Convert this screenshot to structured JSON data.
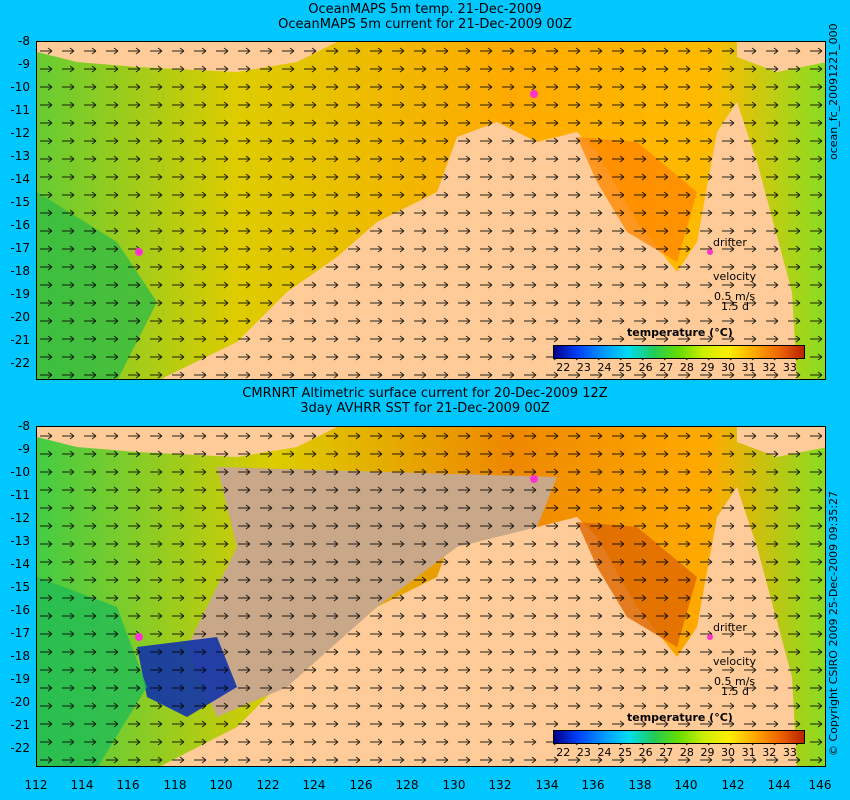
{
  "top_panel": {
    "title_line1": "OceanMAPS 5m temp. 21-Dec-2009",
    "title_line2": "OceanMAPS 5m current for 21-Dec-2009 00Z",
    "side_label": "ocean_fc_20091221_000"
  },
  "bottom_panel": {
    "title_line1": "CMRNRT Altimetric surface current for 20-Dec-2009 12Z",
    "title_line2": "3day AVHRR SST for 21-Dec-2009 00Z",
    "side_label": "© Copyright CSIRO 2009  25-Dec-2009 09:35:27"
  },
  "legend": {
    "drifter": "drifter",
    "velocity": "velocity",
    "speed": "0.5 m/s",
    "duration": "1.5 d"
  },
  "colorbar": {
    "label": "temperature (°C)",
    "ticks": [
      "22",
      "23",
      "24",
      "25",
      "26",
      "27",
      "28",
      "29",
      "30",
      "31",
      "32",
      "33"
    ]
  },
  "y_ticks": [
    "-8",
    "-9",
    "-10",
    "-11",
    "-12",
    "-13",
    "-14",
    "-15",
    "-16",
    "-17",
    "-18",
    "-19",
    "-20",
    "-21",
    "-22"
  ],
  "x_ticks": [
    "112",
    "114",
    "116",
    "118",
    "120",
    "122",
    "124",
    "126",
    "128",
    "130",
    "132",
    "134",
    "136",
    "138",
    "140",
    "142",
    "144",
    "146"
  ],
  "colors": {
    "background": "#00c8ff",
    "land": "#ffcc99",
    "no_data": "#c8a888",
    "warm": "#ffaa00",
    "cool": "#22cc55"
  }
}
